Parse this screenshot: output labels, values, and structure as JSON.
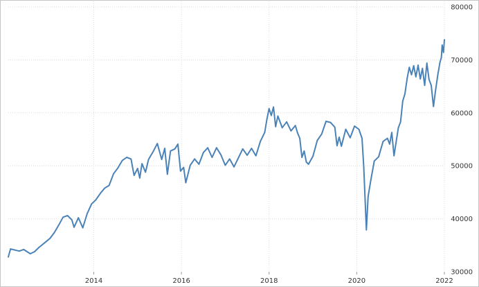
{
  "chart_data": {
    "type": "line",
    "title": "",
    "xlabel": "",
    "ylabel": "",
    "xlim": [
      2012.05,
      2022.0
    ],
    "ylim": [
      30000,
      80000
    ],
    "x_ticks": [
      {
        "value": 2014,
        "label": "2014"
      },
      {
        "value": 2016,
        "label": "2016"
      },
      {
        "value": 2018,
        "label": "2018"
      },
      {
        "value": 2020,
        "label": "2020"
      },
      {
        "value": 2022,
        "label": "2022"
      }
    ],
    "y_ticks": [
      {
        "value": 30000,
        "label": "30000"
      },
      {
        "value": 40000,
        "label": "40000"
      },
      {
        "value": 50000,
        "label": "50000"
      },
      {
        "value": 60000,
        "label": "60000"
      },
      {
        "value": 70000,
        "label": "70000"
      },
      {
        "value": 80000,
        "label": "80000"
      }
    ],
    "grid": true,
    "axis_position": "right",
    "series": [
      {
        "color": "#4a82b7",
        "points": [
          [
            2012.05,
            32800
          ],
          [
            2012.1,
            34300
          ],
          [
            2012.2,
            34100
          ],
          [
            2012.3,
            33900
          ],
          [
            2012.4,
            34200
          ],
          [
            2012.55,
            33400
          ],
          [
            2012.65,
            33800
          ],
          [
            2012.75,
            34600
          ],
          [
            2012.9,
            35600
          ],
          [
            2013.0,
            36300
          ],
          [
            2013.1,
            37400
          ],
          [
            2013.2,
            38800
          ],
          [
            2013.3,
            40300
          ],
          [
            2013.4,
            40600
          ],
          [
            2013.5,
            39800
          ],
          [
            2013.55,
            38400
          ],
          [
            2013.65,
            40200
          ],
          [
            2013.75,
            38300
          ],
          [
            2013.85,
            41000
          ],
          [
            2013.95,
            42800
          ],
          [
            2014.05,
            43600
          ],
          [
            2014.15,
            44800
          ],
          [
            2014.25,
            45800
          ],
          [
            2014.35,
            46300
          ],
          [
            2014.45,
            48500
          ],
          [
            2014.55,
            49600
          ],
          [
            2014.65,
            51000
          ],
          [
            2014.75,
            51600
          ],
          [
            2014.85,
            51300
          ],
          [
            2014.92,
            48200
          ],
          [
            2015.0,
            49500
          ],
          [
            2015.05,
            47700
          ],
          [
            2015.1,
            50400
          ],
          [
            2015.18,
            48800
          ],
          [
            2015.25,
            51200
          ],
          [
            2015.35,
            52600
          ],
          [
            2015.45,
            54200
          ],
          [
            2015.55,
            51200
          ],
          [
            2015.62,
            53300
          ],
          [
            2015.68,
            48400
          ],
          [
            2015.75,
            52800
          ],
          [
            2015.85,
            53200
          ],
          [
            2015.92,
            54100
          ],
          [
            2015.98,
            49000
          ],
          [
            2016.05,
            49700
          ],
          [
            2016.1,
            46800
          ],
          [
            2016.2,
            50100
          ],
          [
            2016.3,
            51300
          ],
          [
            2016.4,
            50300
          ],
          [
            2016.5,
            52500
          ],
          [
            2016.6,
            53400
          ],
          [
            2016.7,
            51600
          ],
          [
            2016.8,
            53400
          ],
          [
            2016.9,
            52100
          ],
          [
            2017.0,
            50100
          ],
          [
            2017.1,
            51300
          ],
          [
            2017.2,
            49800
          ],
          [
            2017.3,
            51500
          ],
          [
            2017.4,
            53200
          ],
          [
            2017.5,
            52000
          ],
          [
            2017.6,
            53300
          ],
          [
            2017.7,
            51900
          ],
          [
            2017.8,
            54600
          ],
          [
            2017.9,
            56300
          ],
          [
            2017.95,
            58800
          ],
          [
            2018.0,
            60800
          ],
          [
            2018.05,
            59500
          ],
          [
            2018.1,
            61100
          ],
          [
            2018.15,
            57400
          ],
          [
            2018.2,
            59400
          ],
          [
            2018.3,
            57200
          ],
          [
            2018.4,
            58300
          ],
          [
            2018.5,
            56600
          ],
          [
            2018.6,
            57600
          ],
          [
            2018.65,
            56200
          ],
          [
            2018.7,
            55200
          ],
          [
            2018.75,
            51600
          ],
          [
            2018.8,
            52800
          ],
          [
            2018.85,
            50700
          ],
          [
            2018.9,
            50300
          ],
          [
            2019.0,
            51800
          ],
          [
            2019.1,
            54800
          ],
          [
            2019.2,
            56000
          ],
          [
            2019.3,
            58400
          ],
          [
            2019.4,
            58200
          ],
          [
            2019.5,
            57300
          ],
          [
            2019.55,
            53800
          ],
          [
            2019.6,
            55400
          ],
          [
            2019.65,
            53700
          ],
          [
            2019.75,
            56900
          ],
          [
            2019.85,
            55300
          ],
          [
            2019.95,
            57500
          ],
          [
            2020.05,
            56900
          ],
          [
            2020.12,
            55200
          ],
          [
            2020.16,
            49800
          ],
          [
            2020.19,
            43800
          ],
          [
            2020.22,
            37900
          ],
          [
            2020.26,
            44200
          ],
          [
            2020.32,
            47200
          ],
          [
            2020.4,
            50900
          ],
          [
            2020.5,
            51700
          ],
          [
            2020.6,
            54600
          ],
          [
            2020.7,
            55200
          ],
          [
            2020.75,
            54100
          ],
          [
            2020.8,
            56300
          ],
          [
            2020.85,
            51900
          ],
          [
            2020.9,
            54600
          ],
          [
            2020.95,
            57200
          ],
          [
            2021.0,
            58300
          ],
          [
            2021.05,
            62200
          ],
          [
            2021.1,
            63600
          ],
          [
            2021.15,
            66500
          ],
          [
            2021.2,
            68600
          ],
          [
            2021.25,
            67200
          ],
          [
            2021.3,
            68900
          ],
          [
            2021.35,
            66800
          ],
          [
            2021.4,
            69000
          ],
          [
            2021.45,
            66400
          ],
          [
            2021.5,
            68400
          ],
          [
            2021.55,
            65200
          ],
          [
            2021.6,
            69400
          ],
          [
            2021.65,
            66300
          ],
          [
            2021.7,
            65200
          ],
          [
            2021.75,
            61200
          ],
          [
            2021.8,
            64300
          ],
          [
            2021.85,
            67200
          ],
          [
            2021.9,
            69600
          ],
          [
            2021.93,
            70400
          ],
          [
            2021.95,
            72800
          ],
          [
            2021.98,
            71400
          ],
          [
            2022.0,
            73800
          ]
        ]
      }
    ]
  }
}
